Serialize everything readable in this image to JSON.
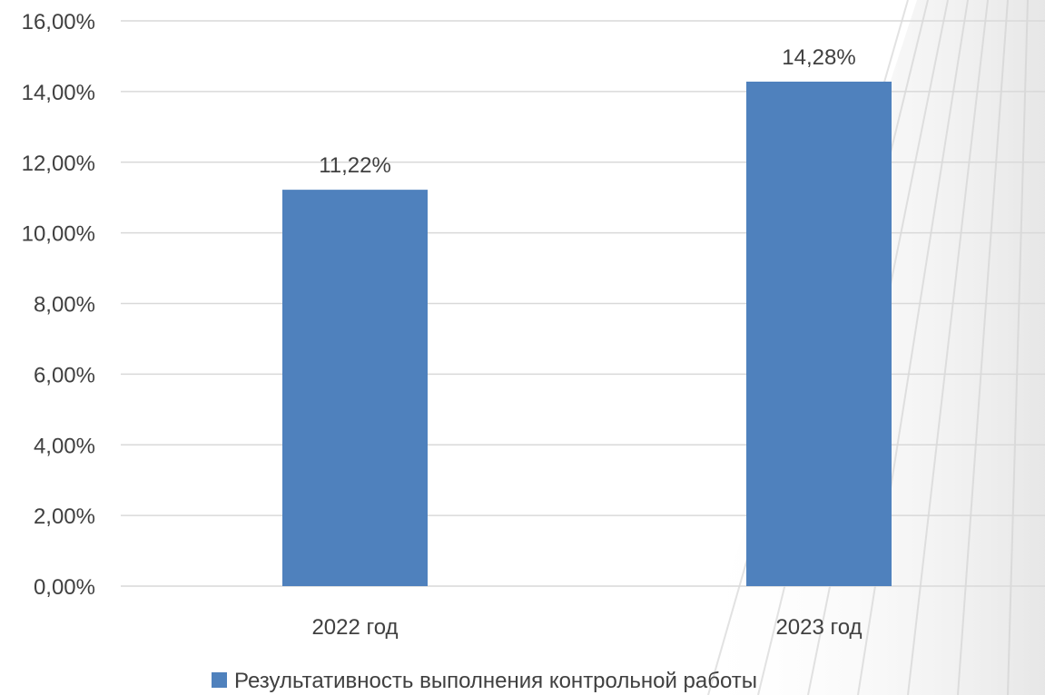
{
  "chart_data": {
    "type": "bar",
    "categories": [
      "2022 год",
      "2023 год"
    ],
    "series": [
      {
        "name": "Результативность выполнения контрольной работы",
        "values": [
          11.22,
          14.28
        ],
        "color": "#4F81BD"
      }
    ],
    "data_labels": [
      "11,22%",
      "14,28%"
    ],
    "ylim": [
      0,
      16
    ],
    "y_ticks": [
      0,
      2,
      4,
      6,
      8,
      10,
      12,
      14,
      16
    ],
    "y_tick_labels": [
      "0,00%",
      "2,00%",
      "4,00%",
      "6,00%",
      "8,00%",
      "10,00%",
      "12,00%",
      "14,00%",
      "16,00%"
    ],
    "grid": true,
    "legend_position": "bottom",
    "gridline_color": "#D9D9D9",
    "text_color": "#404040"
  }
}
